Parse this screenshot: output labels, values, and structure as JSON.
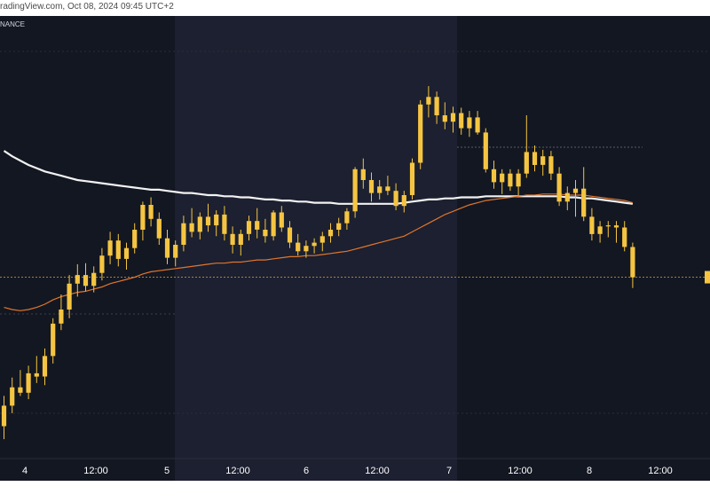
{
  "header": {
    "source_text": "radingView.com, Oct 08, 2024 09:45 UTC+2"
  },
  "chart": {
    "exchange_label": "NANCE"
  },
  "colors": {
    "background": "#131722",
    "weekend_band": "#1c2030",
    "bull_candle": "#f5c542",
    "bear_candle": "#f5c542",
    "ema_slow": "#f2f2f2",
    "ema_fast": "#e0762c",
    "price_line": "#d9a441",
    "grid": "#2a2e39",
    "axis_text": "#ffffff"
  },
  "chart_data": {
    "type": "candlestick",
    "x_axis": {
      "tick_labels": [
        "4",
        "12:00",
        "5",
        "12:00",
        "6",
        "12:00",
        "7",
        "12:00",
        "8",
        "12:00"
      ]
    },
    "price_line": {
      "value": 0.6028
    },
    "y_scale_hint": {
      "min": 0.586,
      "max": 0.627
    },
    "candles": [
      [
        0.589,
        0.5918,
        0.5878,
        0.5909
      ],
      [
        0.5909,
        0.5935,
        0.5902,
        0.5926
      ],
      [
        0.5926,
        0.5942,
        0.5918,
        0.5921
      ],
      [
        0.5921,
        0.5946,
        0.5915,
        0.5939
      ],
      [
        0.5939,
        0.5955,
        0.593,
        0.5936
      ],
      [
        0.5936,
        0.5962,
        0.5928,
        0.5955
      ],
      [
        0.5955,
        0.599,
        0.5948,
        0.5985
      ],
      [
        0.5985,
        0.6012,
        0.5979,
        0.5998
      ],
      [
        0.5998,
        0.603,
        0.599,
        0.6022
      ],
      [
        0.6022,
        0.604,
        0.601,
        0.603
      ],
      [
        0.603,
        0.6041,
        0.6015,
        0.602
      ],
      [
        0.602,
        0.6038,
        0.6014,
        0.6032
      ],
      [
        0.6032,
        0.6055,
        0.6025,
        0.6048
      ],
      [
        0.6048,
        0.607,
        0.604,
        0.6062
      ],
      [
        0.6062,
        0.6068,
        0.6038,
        0.6045
      ],
      [
        0.6045,
        0.606,
        0.6035,
        0.6055
      ],
      [
        0.6055,
        0.6078,
        0.605,
        0.6072
      ],
      [
        0.6072,
        0.6098,
        0.6062,
        0.6095
      ],
      [
        0.6095,
        0.6102,
        0.6075,
        0.6082
      ],
      [
        0.6082,
        0.6088,
        0.6058,
        0.6064
      ],
      [
        0.6064,
        0.6072,
        0.604,
        0.6046
      ],
      [
        0.6046,
        0.6062,
        0.6038,
        0.6058
      ],
      [
        0.6058,
        0.6085,
        0.6052,
        0.6078
      ],
      [
        0.6078,
        0.6092,
        0.6065,
        0.607
      ],
      [
        0.607,
        0.6088,
        0.6063,
        0.6084
      ],
      [
        0.6084,
        0.6096,
        0.607,
        0.6076
      ],
      [
        0.6076,
        0.609,
        0.6066,
        0.6086
      ],
      [
        0.6086,
        0.6094,
        0.6062,
        0.6068
      ],
      [
        0.6068,
        0.6075,
        0.605,
        0.6058
      ],
      [
        0.6058,
        0.6072,
        0.6048,
        0.6068
      ],
      [
        0.6068,
        0.6085,
        0.6062,
        0.608
      ],
      [
        0.608,
        0.6092,
        0.6064,
        0.6072
      ],
      [
        0.6072,
        0.6082,
        0.606,
        0.6066
      ],
      [
        0.6066,
        0.609,
        0.6062,
        0.6088
      ],
      [
        0.6088,
        0.6094,
        0.607,
        0.6074
      ],
      [
        0.6074,
        0.608,
        0.6055,
        0.606
      ],
      [
        0.606,
        0.6068,
        0.6048,
        0.6052
      ],
      [
        0.6052,
        0.6062,
        0.6046,
        0.6057
      ],
      [
        0.6057,
        0.6064,
        0.605,
        0.606
      ],
      [
        0.606,
        0.607,
        0.6052,
        0.6066
      ],
      [
        0.6066,
        0.6078,
        0.606,
        0.6072
      ],
      [
        0.6072,
        0.6083,
        0.6066,
        0.6078
      ],
      [
        0.6078,
        0.6092,
        0.6072,
        0.6089
      ],
      [
        0.6089,
        0.613,
        0.6083,
        0.6128
      ],
      [
        0.6128,
        0.6138,
        0.611,
        0.6118
      ],
      [
        0.6118,
        0.6125,
        0.6098,
        0.6106
      ],
      [
        0.6106,
        0.6118,
        0.61,
        0.6112
      ],
      [
        0.6112,
        0.6122,
        0.6104,
        0.6108
      ],
      [
        0.6108,
        0.6115,
        0.609,
        0.6094
      ],
      [
        0.6094,
        0.6108,
        0.6088,
        0.6104
      ],
      [
        0.6104,
        0.6138,
        0.61,
        0.6134
      ],
      [
        0.6134,
        0.6192,
        0.6128,
        0.6188
      ],
      [
        0.6188,
        0.6205,
        0.6176,
        0.6195
      ],
      [
        0.6195,
        0.62,
        0.617,
        0.6178
      ],
      [
        0.6178,
        0.619,
        0.6165,
        0.6172
      ],
      [
        0.6172,
        0.6186,
        0.6162,
        0.618
      ],
      [
        0.618,
        0.6185,
        0.616,
        0.6166
      ],
      [
        0.6166,
        0.6182,
        0.6158,
        0.6176
      ],
      [
        0.6176,
        0.6182,
        0.616,
        0.6162
      ],
      [
        0.6162,
        0.6166,
        0.6125,
        0.6128
      ],
      [
        0.6128,
        0.6136,
        0.611,
        0.6116
      ],
      [
        0.6116,
        0.6128,
        0.6105,
        0.6124
      ],
      [
        0.6124,
        0.6128,
        0.6108,
        0.6112
      ],
      [
        0.6112,
        0.6128,
        0.6104,
        0.6124
      ],
      [
        0.6124,
        0.6178,
        0.612,
        0.6144
      ],
      [
        0.6144,
        0.615,
        0.6126,
        0.6132
      ],
      [
        0.6132,
        0.6146,
        0.6122,
        0.614
      ],
      [
        0.614,
        0.6145,
        0.6118,
        0.6124
      ],
      [
        0.6124,
        0.613,
        0.6094,
        0.6098
      ],
      [
        0.6098,
        0.6112,
        0.609,
        0.6106
      ],
      [
        0.6106,
        0.6118,
        0.6084,
        0.611
      ],
      [
        0.611,
        0.613,
        0.608,
        0.6084
      ],
      [
        0.6084,
        0.6092,
        0.6062,
        0.6068
      ],
      [
        0.6068,
        0.608,
        0.606,
        0.6075
      ],
      [
        0.6075,
        0.608,
        0.6065,
        0.6076
      ],
      [
        0.6076,
        0.608,
        0.606,
        0.6074
      ],
      [
        0.6074,
        0.608,
        0.6052,
        0.6056
      ],
      [
        0.6056,
        0.606,
        0.6018,
        0.6028
      ]
    ],
    "ema_slow": [
      0.6145,
      0.614,
      0.6136,
      0.6132,
      0.6129,
      0.6126,
      0.6124,
      0.6122,
      0.612,
      0.6118,
      0.6117,
      0.6116,
      0.6115,
      0.6114,
      0.6113,
      0.6112,
      0.6111,
      0.611,
      0.6109,
      0.6109,
      0.6108,
      0.6107,
      0.6106,
      0.6106,
      0.6105,
      0.6104,
      0.6104,
      0.6103,
      0.6103,
      0.6102,
      0.6102,
      0.6101,
      0.61,
      0.61,
      0.6099,
      0.6099,
      0.6098,
      0.6098,
      0.6097,
      0.6097,
      0.6097,
      0.6096,
      0.6096,
      0.6096,
      0.6096,
      0.6096,
      0.6096,
      0.6096,
      0.6096,
      0.6097,
      0.6098,
      0.6099,
      0.61,
      0.61,
      0.6101,
      0.6101,
      0.6102,
      0.6102,
      0.6102,
      0.6103,
      0.6103,
      0.6103,
      0.6103,
      0.6103,
      0.6103,
      0.6103,
      0.6103,
      0.6103,
      0.6103,
      0.6102,
      0.6102,
      0.6101,
      0.6101,
      0.61,
      0.6099,
      0.6098,
      0.6097,
      0.6096
    ],
    "ema_fast": [
      0.6,
      0.5998,
      0.5997,
      0.5998,
      0.6,
      0.6003,
      0.6007,
      0.601,
      0.6012,
      0.6014,
      0.6015,
      0.6017,
      0.6019,
      0.6022,
      0.6024,
      0.6026,
      0.6028,
      0.6031,
      0.6033,
      0.6034,
      0.6035,
      0.6036,
      0.6037,
      0.6038,
      0.6039,
      0.604,
      0.6041,
      0.6041,
      0.6042,
      0.6042,
      0.6043,
      0.6044,
      0.6044,
      0.6045,
      0.6046,
      0.6047,
      0.6047,
      0.6048,
      0.6048,
      0.6049,
      0.605,
      0.6051,
      0.6052,
      0.6054,
      0.6056,
      0.6058,
      0.606,
      0.6062,
      0.6064,
      0.6066,
      0.607,
      0.6074,
      0.6078,
      0.6082,
      0.6086,
      0.6089,
      0.6092,
      0.6095,
      0.6097,
      0.6099,
      0.61,
      0.6101,
      0.6102,
      0.6103,
      0.6104,
      0.6104,
      0.6105,
      0.6105,
      0.6105,
      0.6104,
      0.6104,
      0.6104,
      0.6103,
      0.6102,
      0.6101,
      0.61,
      0.6099,
      0.6097
    ]
  }
}
